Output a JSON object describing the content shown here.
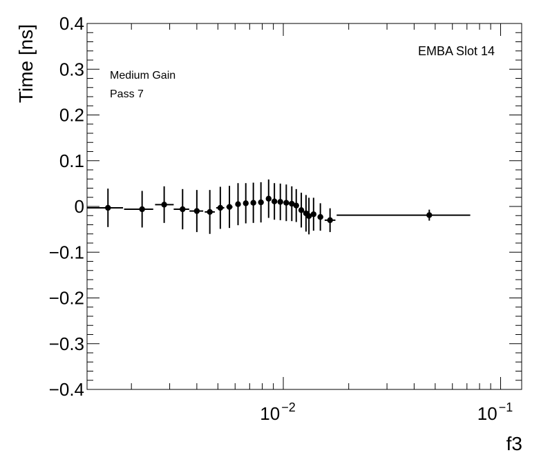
{
  "chart_data": {
    "type": "scatter",
    "title": "",
    "xlabel": "f3",
    "ylabel": "Time [ns]",
    "xscale": "log",
    "xlim": [
      0.00125,
      0.125
    ],
    "ylim": [
      -0.4,
      0.4
    ],
    "grid": false,
    "legend": "none",
    "annotations": {
      "slot": "EMBA Slot 14",
      "gain": "Medium Gain",
      "pass": "Pass 7"
    },
    "y_ticks": [
      {
        "value": 0.4,
        "label": "0.4"
      },
      {
        "value": 0.3,
        "label": "0.3"
      },
      {
        "value": 0.2,
        "label": "0.2"
      },
      {
        "value": 0.1,
        "label": "0.1"
      },
      {
        "value": 0.0,
        "label": "0"
      },
      {
        "value": -0.1,
        "label": "−0.1"
      },
      {
        "value": -0.2,
        "label": "−0.2"
      },
      {
        "value": -0.3,
        "label": "−0.3"
      },
      {
        "value": -0.4,
        "label": "−0.4"
      }
    ],
    "x_ticks": [
      {
        "value": 0.01,
        "base": "10",
        "exp": "−2"
      },
      {
        "value": 0.1,
        "base": "10",
        "exp": "−1"
      }
    ],
    "points": [
      {
        "x": 0.00156,
        "y": -0.003,
        "xlo": 0.00125,
        "xhi": 0.00183,
        "err": 0.042
      },
      {
        "x": 0.00224,
        "y": -0.006,
        "xlo": 0.00185,
        "xhi": 0.00252,
        "err": 0.04
      },
      {
        "x": 0.00283,
        "y": 0.004,
        "xlo": 0.00257,
        "xhi": 0.00313,
        "err": 0.04
      },
      {
        "x": 0.00344,
        "y": -0.006,
        "xlo": 0.00313,
        "xhi": 0.00369,
        "err": 0.044
      },
      {
        "x": 0.004,
        "y": -0.01,
        "xlo": 0.0037,
        "xhi": 0.00428,
        "err": 0.046
      },
      {
        "x": 0.00459,
        "y": -0.012,
        "xlo": 0.00435,
        "xhi": 0.00484,
        "err": 0.048
      },
      {
        "x": 0.00513,
        "y": -0.003,
        "xlo": 0.00491,
        "xhi": 0.00535,
        "err": 0.046
      },
      {
        "x": 0.00565,
        "y": -0.001,
        "xlo": 0.00547,
        "xhi": 0.00584,
        "err": 0.046
      },
      {
        "x": 0.00619,
        "y": 0.005,
        "xlo": 0.00606,
        "xhi": 0.00632,
        "err": 0.046
      },
      {
        "x": 0.00672,
        "y": 0.007,
        "xlo": 0.00664,
        "xhi": 0.0068,
        "err": 0.044
      },
      {
        "x": 0.00728,
        "y": 0.008,
        "xlo": 0.0072,
        "xhi": 0.00736,
        "err": 0.044
      },
      {
        "x": 0.00789,
        "y": 0.009,
        "xlo": 0.0078,
        "xhi": 0.00797,
        "err": 0.044
      },
      {
        "x": 0.00856,
        "y": 0.017,
        "xlo": 0.00846,
        "xhi": 0.00866,
        "err": 0.042
      },
      {
        "x": 0.0091,
        "y": 0.011,
        "xlo": 0.009,
        "xhi": 0.0092,
        "err": 0.04
      },
      {
        "x": 0.00969,
        "y": 0.01,
        "xlo": 0.00958,
        "xhi": 0.0098,
        "err": 0.04
      },
      {
        "x": 0.01032,
        "y": 0.008,
        "xlo": 0.0102,
        "xhi": 0.01044,
        "err": 0.04
      },
      {
        "x": 0.01094,
        "y": 0.006,
        "xlo": 0.01082,
        "xhi": 0.01106,
        "err": 0.038
      },
      {
        "x": 0.01147,
        "y": 0.002,
        "xlo": 0.01135,
        "xhi": 0.0116,
        "err": 0.036
      },
      {
        "x": 0.0121,
        "y": -0.008,
        "xlo": 0.01197,
        "xhi": 0.01223,
        "err": 0.038
      },
      {
        "x": 0.01272,
        "y": -0.015,
        "xlo": 0.01258,
        "xhi": 0.01286,
        "err": 0.04
      },
      {
        "x": 0.01312,
        "y": -0.021,
        "xlo": 0.01298,
        "xhi": 0.01326,
        "err": 0.04
      },
      {
        "x": 0.01378,
        "y": -0.017,
        "xlo": 0.01363,
        "xhi": 0.01393,
        "err": 0.036
      },
      {
        "x": 0.01481,
        "y": -0.023,
        "xlo": 0.01437,
        "xhi": 0.01526,
        "err": 0.03
      },
      {
        "x": 0.01641,
        "y": -0.03,
        "xlo": 0.0155,
        "xhi": 0.01737,
        "err": 0.026
      },
      {
        "x": 0.04696,
        "y": -0.019,
        "xlo": 0.0176,
        "xhi": 0.0725,
        "err": 0.012
      }
    ]
  }
}
